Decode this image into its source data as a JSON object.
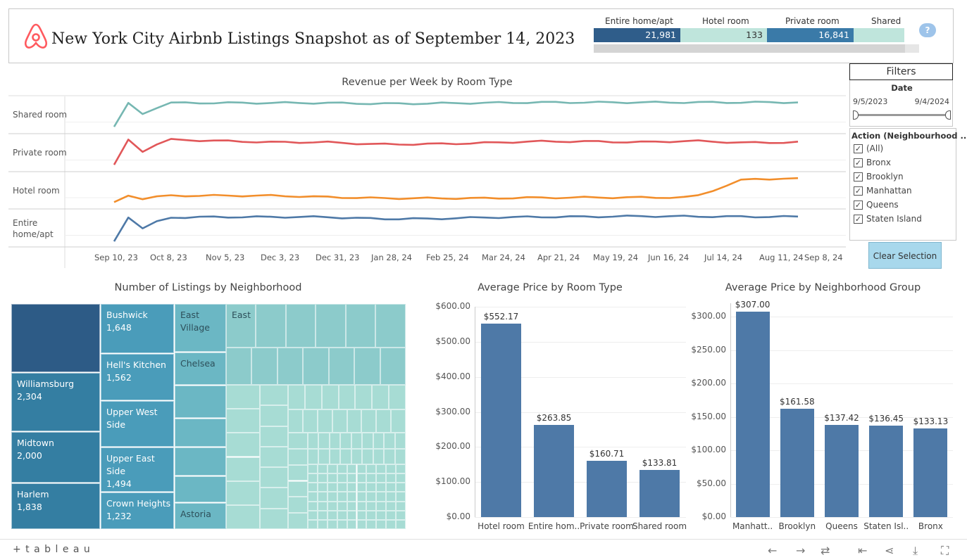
{
  "header": {
    "title": "New York City Airbnb Listings Snapshot as of September 14, 2023",
    "logo_icon": "airbnb-logo-icon",
    "kpis": [
      {
        "label": "Entire home/apt",
        "value": "21,981",
        "color": "#2f5d8a",
        "text_color": "#ffffff"
      },
      {
        "label": "Hotel room",
        "value": "133",
        "color": "#bfe5dc",
        "text_color": "#333333"
      },
      {
        "label": "Private room",
        "value": "16,841",
        "color": "#3a7aa8",
        "text_color": "#ffffff"
      },
      {
        "label": "Shared r",
        "value": "",
        "color": "#bfe5dc",
        "text_color": "#333333"
      }
    ],
    "help_icon": "help-bubble-icon",
    "help_text": "?"
  },
  "revenue_chart": {
    "title": "Revenue per Week by Room Type",
    "row_labels": [
      "Shared room",
      "Private room",
      "Hotel room",
      "Entire home/apt"
    ],
    "x_ticks": [
      "Sep 10, 23",
      "Oct 8, 23",
      "Nov 5, 23",
      "Dec 3, 23",
      "Dec 31, 23",
      "Jan 28, 24",
      "Feb 25, 24",
      "Mar 24, 24",
      "Apr 21, 24",
      "May 19, 24",
      "Jun 16, 24",
      "Jul 14, 24",
      "Aug 11, 24",
      "Sep 8, 24"
    ],
    "colors": {
      "shared": "#76b7b2",
      "private": "#e15759",
      "hotel": "#f28e2b",
      "entire": "#4e79a7"
    }
  },
  "filters": {
    "title": "Filters",
    "date_label": "Date",
    "date_start": "9/5/2023",
    "date_end": "9/4/2024",
    "action_label": "Action (Neighbourhood ...",
    "options": [
      "(All)",
      "Bronx",
      "Brooklyn",
      "Manhattan",
      "Queens",
      "Staten Island"
    ],
    "check_mark": "✓",
    "clear_label": "Clear Selection"
  },
  "treemap": {
    "title": "Number of Listings by Neighborhood",
    "items": [
      {
        "name": "Williamsburg",
        "value": "2,304"
      },
      {
        "name": "Midtown",
        "value": "2,000"
      },
      {
        "name": "Harlem",
        "value": "1,838"
      },
      {
        "name": "Bushwick",
        "value": "1,648"
      },
      {
        "name": "Hell's Kitchen",
        "value": "1,562"
      },
      {
        "name": "Upper West Side",
        "value": ""
      },
      {
        "name": "Upper East Side",
        "value": "1,494"
      },
      {
        "name": "Crown Heights",
        "value": "1,232"
      },
      {
        "name": "East Village",
        "value": ""
      },
      {
        "name": "Chelsea",
        "value": ""
      },
      {
        "name": "Astoria",
        "value": ""
      },
      {
        "name": "East",
        "value": ""
      }
    ]
  },
  "chart_data": [
    {
      "type": "line",
      "title": "Revenue per Week by Room Type",
      "x": [
        "Sep 10, 23",
        "Oct 8, 23",
        "Nov 5, 23",
        "Dec 3, 23",
        "Dec 31, 23",
        "Jan 28, 24",
        "Feb 25, 24",
        "Mar 24, 24",
        "Apr 21, 24",
        "May 19, 24",
        "Jun 16, 24",
        "Jul 14, 24",
        "Aug 11, 24",
        "Sep 8, 24"
      ],
      "series": [
        {
          "name": "Shared room",
          "values": [
            0.1,
            1.0,
            1.0,
            1.0,
            1.0,
            0.97,
            0.98,
            1.0,
            1.02,
            1.02,
            1.02,
            1.02,
            1.02,
            1.02
          ]
        },
        {
          "name": "Private room",
          "values": [
            0.1,
            1.05,
            1.0,
            0.95,
            0.95,
            0.87,
            0.88,
            0.92,
            0.98,
            0.98,
            0.95,
            1.0,
            0.93,
            0.95
          ]
        },
        {
          "name": "Hotel room",
          "values": [
            0.1,
            0.35,
            0.35,
            0.35,
            0.3,
            0.25,
            0.25,
            0.25,
            0.27,
            0.28,
            0.28,
            0.28,
            1.0,
            1.0
          ]
        },
        {
          "name": "Entire home/apt",
          "values": [
            0.05,
            0.95,
            0.97,
            0.97,
            0.97,
            0.9,
            0.9,
            0.95,
            0.97,
            0.98,
            1.0,
            0.99,
            0.98,
            0.98
          ]
        }
      ]
    },
    {
      "type": "bar",
      "title": "Average Price by Room Type",
      "categories": [
        "Hotel room",
        "Entire hom..",
        "Private room",
        "Shared room"
      ],
      "values": [
        552.17,
        263.85,
        160.71,
        133.81
      ],
      "value_labels": [
        "$552.17",
        "$263.85",
        "$160.71",
        "$133.81"
      ],
      "y_ticks": [
        "$0.00",
        "$100.00",
        "$200.00",
        "$300.00",
        "$400.00",
        "$500.00",
        "$600.00"
      ],
      "ylim": [
        0,
        600
      ]
    },
    {
      "type": "bar",
      "title": "Average Price by Neighborhood Group",
      "categories": [
        "Manhatt..",
        "Brooklyn",
        "Queens",
        "Staten Isl..",
        "Bronx"
      ],
      "values": [
        307.0,
        161.58,
        137.42,
        136.45,
        133.13
      ],
      "value_labels": [
        "$307.00",
        "$161.58",
        "$137.42",
        "$136.45",
        "$133.13"
      ],
      "y_ticks": [
        "$0.00",
        "$50.00",
        "$100.00",
        "$150.00",
        "$200.00",
        "$250.00",
        "$300.00"
      ],
      "ylim": [
        0,
        320
      ]
    }
  ],
  "footer": {
    "brand": "+ t a b l e a u",
    "icons": [
      "undo-icon",
      "redo-icon",
      "revert-icon",
      "reset-icon",
      "share-icon",
      "download-icon",
      "fullscreen-icon"
    ],
    "glyphs": [
      "←",
      "→",
      "⇄",
      "⇤",
      "⋖",
      "⤓",
      "⛶"
    ]
  }
}
